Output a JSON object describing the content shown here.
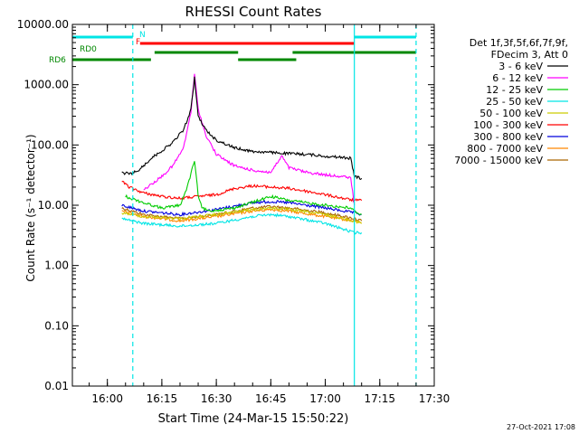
{
  "chart_data": {
    "type": "line",
    "title": "RHESSI Count Rates",
    "xlabel": "Start Time (24-Mar-15 15:50:22)",
    "ylabel": "Count Rate (s⁻¹ detector⁻¹)",
    "y_scale": "log",
    "ylim": [
      0.01,
      10000
    ],
    "xlim": [
      "15:50:22",
      "17:30:00"
    ],
    "y_ticks": [
      "0.01",
      "0.10",
      "1.00",
      "10.00",
      "100.00",
      "1000.00",
      "10000.00"
    ],
    "x_ticks": [
      "16:00",
      "16:15",
      "16:30",
      "16:45",
      "17:00",
      "17:15",
      "17:30"
    ],
    "legend_position": "right",
    "legend_header": [
      "Det 1f,3f,5f,6f,7f,9f,",
      "FDecim 3, Att 0"
    ],
    "timestamp": "27-Oct-2021 17:08",
    "series": [
      {
        "name": "3 - 6 keV",
        "color": "#000000",
        "t": [
          "16:04",
          "16:06",
          "16:08",
          "16:10",
          "16:12",
          "16:15",
          "16:18",
          "16:21",
          "16:23",
          "16:24",
          "16:25",
          "16:27",
          "16:30",
          "16:35",
          "16:40",
          "16:45",
          "16:50",
          "16:55",
          "17:00",
          "17:05",
          "17:07",
          "17:08",
          "17:10"
        ],
        "v": [
          35,
          33,
          36,
          45,
          60,
          80,
          110,
          180,
          380,
          1300,
          300,
          180,
          120,
          90,
          78,
          75,
          72,
          70,
          65,
          62,
          60,
          30,
          28
        ]
      },
      {
        "name": "6 - 12 keV",
        "color": "#ff00ff",
        "t": [
          "16:10",
          "16:12",
          "16:15",
          "16:18",
          "16:21",
          "16:23",
          "16:24",
          "16:25",
          "16:27",
          "16:30",
          "16:35",
          "16:40",
          "16:45",
          "16:48",
          "16:50",
          "16:55",
          "17:00",
          "17:05",
          "17:07",
          "17:08"
        ],
        "v": [
          18,
          22,
          30,
          45,
          90,
          350,
          1500,
          400,
          150,
          70,
          45,
          38,
          35,
          65,
          42,
          35,
          32,
          30,
          28,
          10
        ]
      },
      {
        "name": "12 - 25 keV",
        "color": "#00cc00",
        "t": [
          "16:05",
          "16:10",
          "16:15",
          "16:20",
          "16:22",
          "16:24",
          "16:25",
          "16:26",
          "16:28",
          "16:35",
          "16:45",
          "16:50",
          "17:00",
          "17:07",
          "17:08",
          "17:10"
        ],
        "v": [
          14,
          11,
          9,
          10,
          20,
          55,
          15,
          9,
          8,
          9,
          14,
          12,
          10,
          9,
          8,
          7
        ]
      },
      {
        "name": "25 - 50 keV",
        "color": "#00e5e5",
        "t": [
          "16:04",
          "16:10",
          "16:20",
          "16:30",
          "16:40",
          "16:45",
          "16:50",
          "17:00",
          "17:05",
          "17:08",
          "17:10"
        ],
        "v": [
          6,
          5,
          4.5,
          5,
          6.5,
          7,
          6.5,
          5,
          4,
          3.5,
          3.5
        ]
      },
      {
        "name": "50 - 100 keV",
        "color": "#cccc00",
        "t": [
          "16:04",
          "16:10",
          "16:20",
          "16:30",
          "16:40",
          "16:45",
          "16:50",
          "17:00",
          "17:08",
          "17:10"
        ],
        "v": [
          7.5,
          6.5,
          6,
          7,
          8.5,
          9,
          8.5,
          7,
          5.5,
          5
        ]
      },
      {
        "name": "100 - 300 keV",
        "color": "#ff0000",
        "t": [
          "16:04",
          "16:06",
          "16:10",
          "16:15",
          "16:20",
          "16:25",
          "16:30",
          "16:35",
          "16:40",
          "16:45",
          "16:50",
          "16:55",
          "17:00",
          "17:05",
          "17:08",
          "17:10"
        ],
        "v": [
          25,
          20,
          16,
          14,
          13,
          14,
          15,
          19,
          21,
          20,
          19,
          17,
          15,
          13,
          12,
          12
        ]
      },
      {
        "name": "300 - 800 keV",
        "color": "#0000dd",
        "t": [
          "16:04",
          "16:10",
          "16:20",
          "16:30",
          "16:40",
          "16:45",
          "16:50",
          "17:00",
          "17:08",
          "17:10"
        ],
        "v": [
          10,
          8,
          7,
          8.5,
          11,
          11.5,
          11,
          9,
          7.5,
          7
        ]
      },
      {
        "name": "800 - 7000 keV",
        "color": "#ff8800",
        "t": [
          "16:04",
          "16:10",
          "16:20",
          "16:30",
          "16:40",
          "16:45",
          "16:50",
          "17:00",
          "17:08",
          "17:10"
        ],
        "v": [
          8,
          6.5,
          5.5,
          6.5,
          8,
          8.5,
          8,
          6.5,
          5.5,
          5
        ]
      },
      {
        "name": "7000 - 15000 keV",
        "color": "#aa6600",
        "t": [
          "16:04",
          "16:10",
          "16:20",
          "16:30",
          "16:40",
          "16:45",
          "16:50",
          "17:00",
          "17:08",
          "17:10"
        ],
        "v": [
          9,
          7,
          6,
          7,
          9,
          9.5,
          9,
          7.5,
          6,
          5.5
        ]
      }
    ],
    "flags": [
      {
        "label": "N",
        "color": "#00e5e5",
        "segments": [
          [
            "15:50:22",
            "16:07"
          ],
          [
            "17:08",
            "17:25"
          ]
        ]
      },
      {
        "label": "F",
        "color": "#ff0000",
        "segments": [
          [
            "16:09",
            "17:08"
          ]
        ]
      },
      {
        "label": "RD0",
        "color": "#008800",
        "segments": [
          [
            "16:13",
            "16:36"
          ],
          [
            "16:51",
            "17:25"
          ]
        ]
      },
      {
        "label": "RD6",
        "color": "#008800",
        "segments": [
          [
            "15:50:22",
            "16:12"
          ],
          [
            "16:36",
            "16:52"
          ]
        ]
      }
    ],
    "vertical_markers": [
      {
        "time": "16:07",
        "color": "#00e5e5",
        "style": "dashed"
      },
      {
        "time": "17:08",
        "color": "#00e5e5",
        "style": "solid"
      },
      {
        "time": "17:25",
        "color": "#00e5e5",
        "style": "dashed"
      }
    ]
  }
}
